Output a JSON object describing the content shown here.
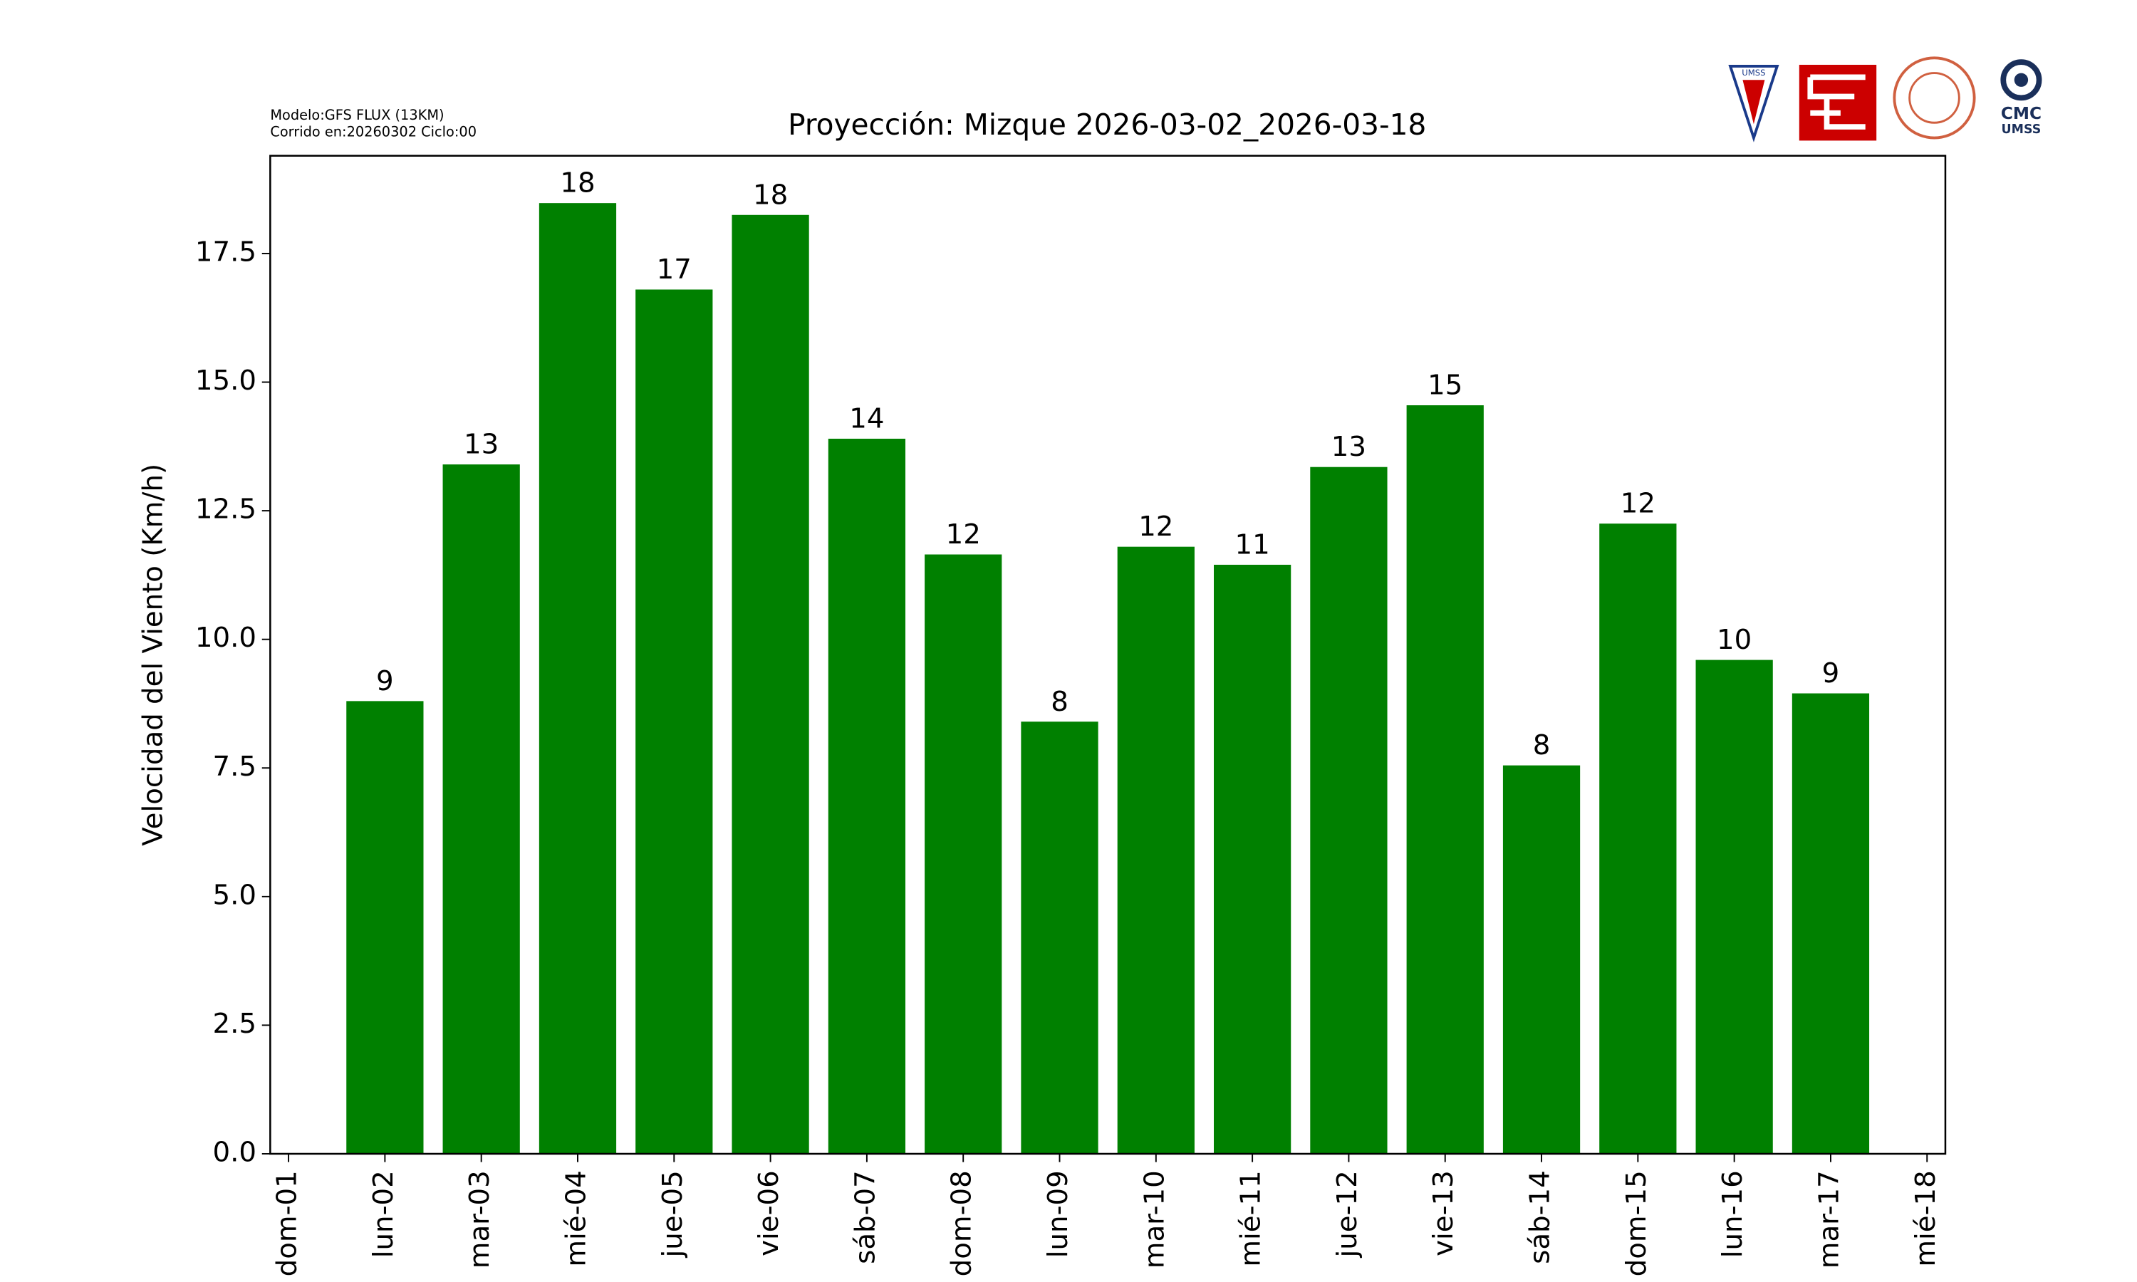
{
  "chart_data": {
    "type": "bar",
    "title": "Proyección: Mizque  2026-03-02_2026-03-18",
    "annotations": [
      "Modelo:GFS FLUX (13KM)",
      "Corrido en:20260302 Ciclo:00"
    ],
    "ylabel": "Velocidad del Viento (Km/h)",
    "categories": [
      "dom-01",
      "lun-02",
      "mar-03",
      "mié-04",
      "jue-05",
      "vie-06",
      "sáb-07",
      "dom-08",
      "lun-09",
      "mar-10",
      "mié-11",
      "jue-12",
      "vie-13",
      "sáb-14",
      "dom-15",
      "lun-16",
      "mar-17",
      "mié-18"
    ],
    "values": [
      null,
      8.8,
      13.4,
      18.48,
      16.8,
      18.25,
      13.9,
      11.65,
      8.4,
      11.8,
      11.45,
      13.35,
      14.55,
      7.55,
      12.25,
      9.6,
      8.95,
      null
    ],
    "value_labels": [
      null,
      "9",
      "13",
      "18",
      "17",
      "18",
      "14",
      "12",
      "8",
      "12",
      "11",
      "13",
      "15",
      "8",
      "12",
      "10",
      "9",
      null
    ],
    "color": "#008000",
    "ylim": [
      0,
      19.4
    ],
    "yticks": [
      {
        "value": 0,
        "label": "0.0"
      },
      2.5,
      {
        "value": 5,
        "label": "5.0"
      },
      7.5,
      {
        "value": 10,
        "label": "10.0"
      },
      12.5,
      {
        "value": 15,
        "label": "15.0"
      },
      17.5
    ],
    "grid": false
  },
  "logos": {
    "shield": "UMSS",
    "cmc": "CMC",
    "cmc_sub": "UMSS"
  }
}
